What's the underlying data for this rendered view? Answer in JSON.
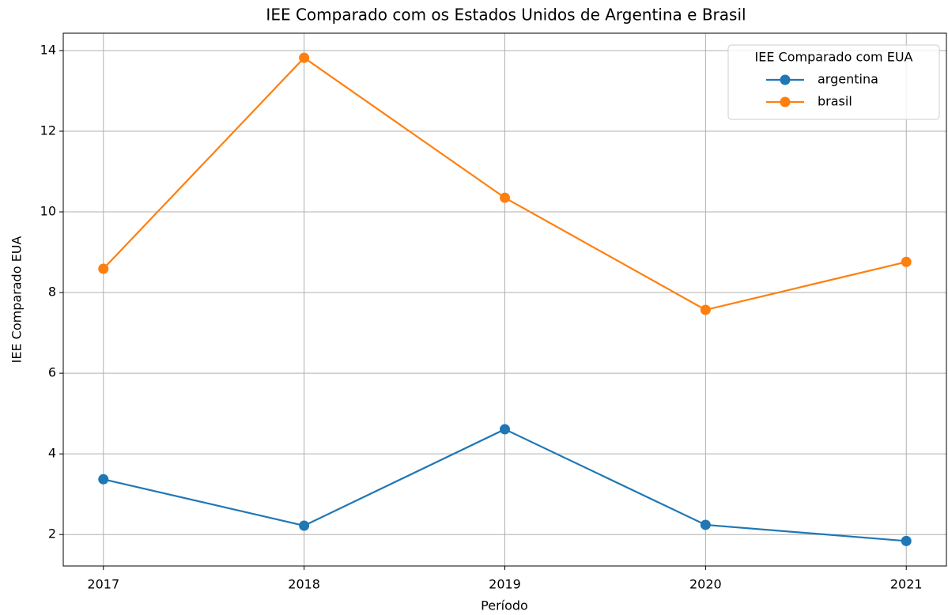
{
  "chart_data": {
    "type": "line",
    "title": "IEE Comparado com os Estados Unidos de Argentina e Brasil",
    "xlabel": "Período",
    "ylabel": "IEE Comparado EUA",
    "x": [
      2017,
      2018,
      2019,
      2020,
      2021
    ],
    "series": [
      {
        "name": "argentina",
        "color": "#1f77b4",
        "values": [
          3.37,
          2.22,
          4.61,
          2.24,
          1.84
        ]
      },
      {
        "name": "brasil",
        "color": "#ff7f0e",
        "values": [
          8.59,
          13.82,
          10.35,
          7.57,
          8.76
        ]
      }
    ],
    "xlim": [
      2016.8,
      2021.2
    ],
    "xticks": [
      2017,
      2018,
      2019,
      2020,
      2021
    ],
    "ylim": [
      1.22,
      14.43
    ],
    "yticks": [
      2,
      4,
      6,
      8,
      10,
      12,
      14
    ],
    "grid": true,
    "legend": {
      "title": "IEE Comparado com EUA",
      "position": "upper right"
    }
  }
}
